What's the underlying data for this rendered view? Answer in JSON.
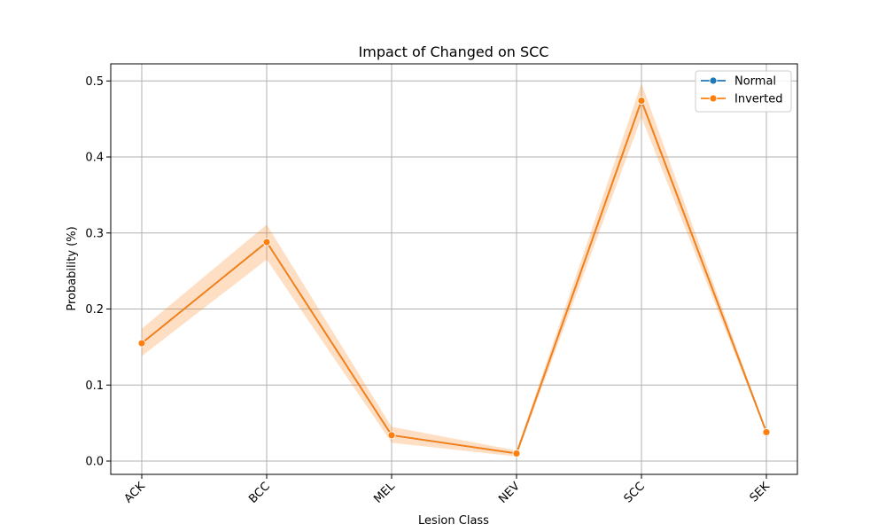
{
  "chart_data": {
    "type": "line",
    "title": "Impact of Changed on SCC",
    "xlabel": "Lesion Class",
    "ylabel": "Probability (%)",
    "categories": [
      "ACK",
      "BCC",
      "MEL",
      "NEV",
      "SCC",
      "SEK"
    ],
    "ylim": [
      -0.0175,
      0.5225
    ],
    "yticks": [
      0.0,
      0.1,
      0.2,
      0.3,
      0.4,
      0.5
    ],
    "ytick_labels": [
      "0.0",
      "0.1",
      "0.2",
      "0.3",
      "0.4",
      "0.5"
    ],
    "grid": true,
    "legend_placement": "top-right",
    "series": [
      {
        "name": "Normal",
        "color": "#1f77b4",
        "values": [
          0.155,
          0.288,
          0.034,
          0.01,
          0.474,
          0.038
        ],
        "ci_lower": null,
        "ci_upper": null
      },
      {
        "name": "Inverted",
        "color": "#ff7f0e",
        "values": [
          0.155,
          0.288,
          0.034,
          0.01,
          0.474,
          0.038
        ],
        "ci_lower": [
          0.138,
          0.265,
          0.024,
          0.006,
          0.452,
          0.036
        ],
        "ci_upper": [
          0.174,
          0.311,
          0.045,
          0.014,
          0.497,
          0.04
        ]
      }
    ]
  }
}
